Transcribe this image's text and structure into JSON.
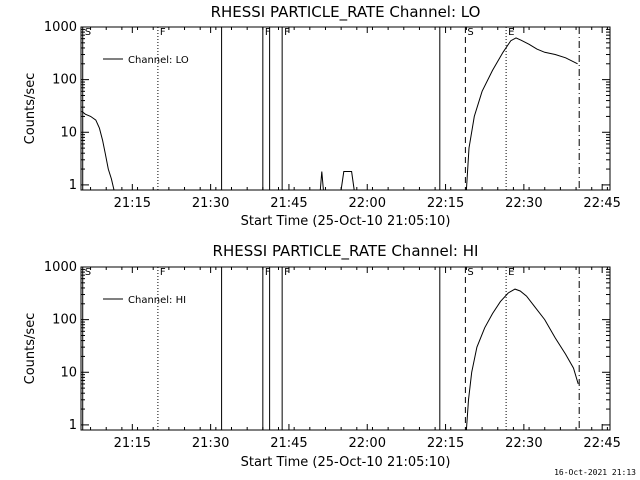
{
  "footer": "16-Oct-2021 21:13",
  "chart_data": [
    {
      "type": "line",
      "title": "RHESSI PARTICLE_RATE Channel: LO",
      "xlabel": "Start Time (25-Oct-10 21:05:10)",
      "ylabel": "Counts/sec",
      "yscale": "log",
      "xlim_min": [
        5.17,
        46.5
      ],
      "ylim": [
        0.8,
        1000
      ],
      "xticks": [
        {
          "v": 15,
          "label": "21:15"
        },
        {
          "v": 30,
          "label": "21:30"
        },
        {
          "v": 45,
          "label": "21:45"
        },
        {
          "v": 60,
          "label": "22:00"
        },
        {
          "v": 75,
          "label": "22:15"
        },
        {
          "v": 90,
          "label": "22:30"
        },
        {
          "v": 105,
          "label": "22:45"
        }
      ],
      "yticks": [
        {
          "v": 1,
          "label": "1"
        },
        {
          "v": 10,
          "label": "10"
        },
        {
          "v": 100,
          "label": "100"
        },
        {
          "v": 1000,
          "label": "1000"
        }
      ],
      "legend": {
        "label": "Channel: LO",
        "position": "top-left"
      },
      "markers": [
        {
          "x": 5.5,
          "style": "solid",
          "label": "S"
        },
        {
          "x": 19.9,
          "style": "dotted",
          "label": "F"
        },
        {
          "x": 32.1,
          "style": "solid",
          "label": ""
        },
        {
          "x": 40.0,
          "style": "solid",
          "label": "F"
        },
        {
          "x": 41.3,
          "style": "solid",
          "label": ""
        },
        {
          "x": 43.7,
          "style": "solid",
          "label": "F"
        },
        {
          "x": 73.9,
          "style": "solid",
          "label": ""
        },
        {
          "x": 78.8,
          "style": "dashed",
          "label": "S"
        },
        {
          "x": 86.6,
          "style": "dotted",
          "label": "E"
        },
        {
          "x": 100.6,
          "style": "dashdot",
          "label": ""
        }
      ],
      "series": [
        {
          "segments": [
            [
              [
                5.3,
                25
              ],
              [
                6.0,
                22
              ],
              [
                7.0,
                20
              ],
              [
                8.0,
                17
              ],
              [
                8.7,
                12
              ],
              [
                9.3,
                7
              ],
              [
                9.8,
                4
              ],
              [
                10.4,
                2
              ],
              [
                11.0,
                1.3
              ],
              [
                11.5,
                0.8
              ]
            ],
            [
              [
                51.0,
                0.8
              ],
              [
                51.3,
                1.8
              ],
              [
                51.6,
                0.8
              ]
            ],
            [
              [
                55.0,
                0.8
              ],
              [
                55.5,
                1.8
              ],
              [
                57.0,
                1.8
              ],
              [
                57.5,
                0.8
              ]
            ],
            [
              [
                79.0,
                0.8
              ],
              [
                79.5,
                5
              ],
              [
                80.5,
                20
              ],
              [
                82.0,
                60
              ],
              [
                84.0,
                150
              ],
              [
                86.0,
                330
              ],
              [
                87.5,
                550
              ],
              [
                88.5,
                620
              ],
              [
                89.5,
                560
              ],
              [
                91.0,
                470
              ],
              [
                92.5,
                380
              ],
              [
                94.0,
                330
              ],
              [
                96.0,
                300
              ],
              [
                98.0,
                260
              ],
              [
                100.3,
                200
              ]
            ]
          ]
        }
      ]
    },
    {
      "type": "line",
      "title": "RHESSI PARTICLE_RATE Channel: HI",
      "xlabel": "Start Time (25-Oct-10 21:05:10)",
      "ylabel": "Counts/sec",
      "yscale": "log",
      "xlim_min": [
        5.17,
        46.5
      ],
      "ylim": [
        0.8,
        1000
      ],
      "xticks": [
        {
          "v": 15,
          "label": "21:15"
        },
        {
          "v": 30,
          "label": "21:30"
        },
        {
          "v": 45,
          "label": "21:45"
        },
        {
          "v": 60,
          "label": "22:00"
        },
        {
          "v": 75,
          "label": "22:15"
        },
        {
          "v": 90,
          "label": "22:30"
        },
        {
          "v": 105,
          "label": "22:45"
        }
      ],
      "yticks": [
        {
          "v": 1,
          "label": "1"
        },
        {
          "v": 10,
          "label": "10"
        },
        {
          "v": 100,
          "label": "100"
        },
        {
          "v": 1000,
          "label": "1000"
        }
      ],
      "legend": {
        "label": "Channel: HI",
        "position": "top-left"
      },
      "markers": [
        {
          "x": 5.5,
          "style": "solid",
          "label": "S"
        },
        {
          "x": 19.9,
          "style": "dotted",
          "label": "F"
        },
        {
          "x": 32.1,
          "style": "solid",
          "label": ""
        },
        {
          "x": 40.0,
          "style": "solid",
          "label": "F"
        },
        {
          "x": 41.3,
          "style": "solid",
          "label": ""
        },
        {
          "x": 43.7,
          "style": "solid",
          "label": "F"
        },
        {
          "x": 73.9,
          "style": "solid",
          "label": ""
        },
        {
          "x": 78.8,
          "style": "dashed",
          "label": "S"
        },
        {
          "x": 86.6,
          "style": "dotted",
          "label": "E"
        },
        {
          "x": 100.6,
          "style": "dashdot",
          "label": ""
        }
      ],
      "series": [
        {
          "segments": [
            [
              [
                79.0,
                0.8
              ],
              [
                79.4,
                3
              ],
              [
                80.0,
                10
              ],
              [
                81.0,
                30
              ],
              [
                82.5,
                70
              ],
              [
                84.0,
                130
              ],
              [
                85.5,
                220
              ],
              [
                87.0,
                320
              ],
              [
                88.3,
                380
              ],
              [
                89.3,
                350
              ],
              [
                90.5,
                280
              ],
              [
                92.0,
                180
              ],
              [
                94.0,
                100
              ],
              [
                96.0,
                45
              ],
              [
                98.0,
                22
              ],
              [
                99.5,
                12
              ],
              [
                100.4,
                6
              ]
            ]
          ]
        }
      ]
    }
  ]
}
